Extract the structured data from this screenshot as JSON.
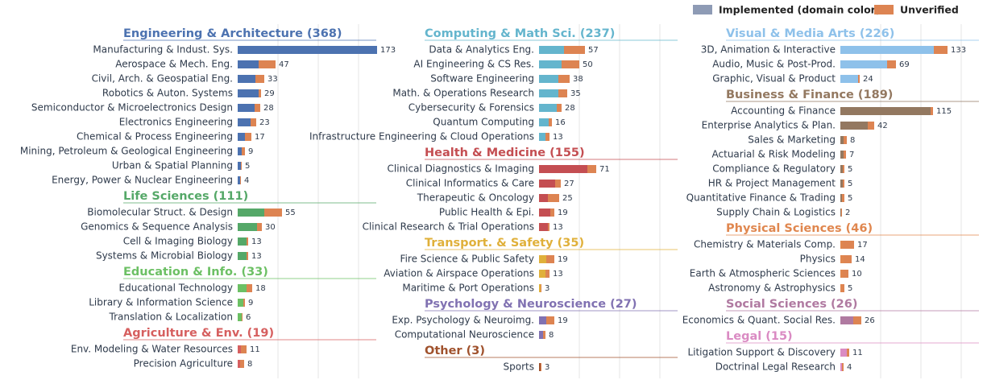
{
  "chart_data": {
    "type": "barh-grouped",
    "xlim": [
      0,
      175
    ],
    "xticks": [
      0,
      50,
      100,
      150
    ],
    "grid": true,
    "legend": [
      {
        "name": "Implemented (domain color)",
        "color": "#8e9bb5"
      },
      {
        "name": "Unverified",
        "color": "#dd8452"
      }
    ],
    "columns": [
      [
        {
          "title": "Engineering & Architecture  (368)",
          "color": "#4c72b0",
          "categories": [
            "Manufacturing & Indust. Sys.",
            "Aerospace & Mech. Eng.",
            "Civil, Arch. & Geospatial Eng.",
            "Robotics & Auton. Systems",
            "Semiconductor & Microelectronics Design",
            "Electronics Engineering",
            "Chemical & Process Engineering",
            "Mining, Petroleum & Geological Engineering",
            "Urban & Spatial Planning",
            "Energy, Power & Nuclear Engineering"
          ],
          "implemented": [
            173,
            26,
            22,
            26,
            21,
            16,
            9,
            5,
            4,
            3
          ],
          "unverified": [
            0,
            21,
            11,
            3,
            7,
            7,
            8,
            4,
            1,
            1
          ],
          "totals": [
            173,
            47,
            33,
            29,
            28,
            23,
            17,
            9,
            5,
            4
          ]
        },
        {
          "title": "Life Sciences  (111)",
          "color": "#55a868",
          "categories": [
            "Biomolecular Struct. & Design",
            "Genomics & Sequence Analysis",
            "Cell & Imaging Biology",
            "Systems & Microbial Biology"
          ],
          "implemented": [
            33,
            24,
            11,
            11
          ],
          "unverified": [
            22,
            6,
            2,
            2
          ],
          "totals": [
            55,
            30,
            13,
            13
          ]
        },
        {
          "title": "Education & Info.  (33)",
          "color": "#6cc064",
          "categories": [
            "Educational Technology",
            "Library & Information Science",
            "Translation & Localization"
          ],
          "implemented": [
            11,
            7,
            5
          ],
          "unverified": [
            7,
            2,
            1
          ],
          "totals": [
            18,
            9,
            6
          ]
        },
        {
          "title": "Agriculture & Env.  (19)",
          "color": "#d65f5f",
          "categories": [
            "Env. Modeling & Water Resources",
            "Precision Agriculture"
          ],
          "implemented": [
            4,
            3
          ],
          "unverified": [
            7,
            5
          ],
          "totals": [
            11,
            8
          ]
        }
      ],
      [
        {
          "title": "Computing & Math Sci.  (237)",
          "color": "#64b5cd",
          "categories": [
            "Data & Analytics Eng.",
            "AI Engineering & CS Res.",
            "Software Engineering",
            "Math. & Operations Research",
            "Cybersecurity & Forensics",
            "Quantum Computing",
            "Infrastructure Engineering & Cloud Operations"
          ],
          "implemented": [
            31,
            28,
            24,
            24,
            22,
            12,
            8
          ],
          "unverified": [
            26,
            22,
            14,
            11,
            6,
            4,
            5
          ],
          "totals": [
            57,
            50,
            38,
            35,
            28,
            16,
            13
          ]
        },
        {
          "title": "Health & Medicine  (155)",
          "color": "#c44e52",
          "categories": [
            "Clinical Diagnostics & Imaging",
            "Clinical Informatics & Care",
            "Therapeutic & Oncology",
            "Public Health & Epi.",
            "Clinical Research & Trial Operations"
          ],
          "implemented": [
            60,
            20,
            11,
            14,
            11
          ],
          "unverified": [
            11,
            7,
            14,
            5,
            2
          ],
          "totals": [
            71,
            27,
            25,
            19,
            13
          ]
        },
        {
          "title": "Transport. & Safety  (35)",
          "color": "#e0b03a",
          "categories": [
            "Fire Science & Public Safety",
            "Aviation & Airspace Operations",
            "Maritime & Port Operations"
          ],
          "implemented": [
            9,
            8,
            2
          ],
          "unverified": [
            10,
            5,
            1
          ],
          "totals": [
            19,
            13,
            3
          ]
        },
        {
          "title": "Psychology & Neuroscience  (27)",
          "color": "#8172b2",
          "categories": [
            "Exp. Psychology & Neuroimg.",
            "Computational Neuroscience"
          ],
          "implemented": [
            9,
            5
          ],
          "unverified": [
            10,
            3
          ],
          "totals": [
            19,
            8
          ]
        },
        {
          "title": "Other  (3)",
          "color": "#a0522d",
          "categories": [
            "Sports"
          ],
          "implemented": [
            2
          ],
          "unverified": [
            1
          ],
          "totals": [
            3
          ]
        }
      ],
      [
        {
          "title": "Visual & Media Arts  (226)",
          "color": "#8ec1ea",
          "categories": [
            "3D, Animation & Interactive",
            "Audio, Music & Post-Prod.",
            "Graphic, Visual & Product"
          ],
          "implemented": [
            116,
            58,
            22
          ],
          "unverified": [
            17,
            11,
            2
          ],
          "totals": [
            133,
            69,
            24
          ]
        },
        {
          "title": "Business & Finance  (189)",
          "color": "#937860",
          "categories": [
            "Accounting & Finance",
            "Enterprise Analytics & Plan.",
            "Sales & Marketing",
            "Actuarial & Risk Modeling",
            "Compliance & Regulatory",
            "HR & Project Management",
            "Quantitative Finance & Trading",
            "Supply Chain & Logistics"
          ],
          "implemented": [
            112,
            34,
            4,
            4,
            3,
            3,
            2,
            1
          ],
          "unverified": [
            3,
            8,
            4,
            3,
            2,
            2,
            3,
            1
          ],
          "totals": [
            115,
            42,
            8,
            7,
            5,
            5,
            5,
            2
          ]
        },
        {
          "title": "Physical Sciences  (46)",
          "color": "#e0874f",
          "categories": [
            "Chemistry & Materials Comp.",
            "Physics",
            "Earth & Atmospheric Sciences",
            "Astronomy & Astrophysics"
          ],
          "implemented": [
            3,
            4,
            3,
            2
          ],
          "unverified": [
            14,
            10,
            7,
            3
          ],
          "totals": [
            17,
            14,
            10,
            5
          ]
        },
        {
          "title": "Social Sciences  (26)",
          "color": "#b07aa1",
          "categories": [
            "Economics & Quant. Social Res."
          ],
          "implemented": [
            16
          ],
          "unverified": [
            10
          ],
          "totals": [
            26
          ]
        },
        {
          "title": "Legal  (15)",
          "color": "#da8bc3",
          "categories": [
            "Litigation Support & Discovery",
            "Doctrinal Legal Research"
          ],
          "implemented": [
            8,
            2
          ],
          "unverified": [
            3,
            2
          ],
          "totals": [
            11,
            4
          ]
        }
      ]
    ]
  }
}
